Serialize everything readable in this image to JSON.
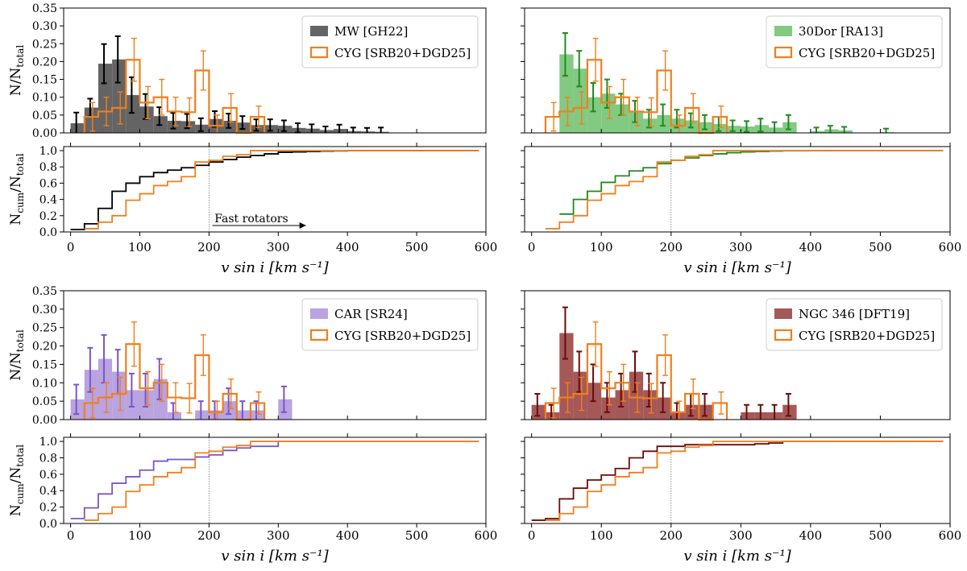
{
  "figure": {
    "hist_ylabel_main": "N/N",
    "hist_ylabel_sub": "total",
    "cum_ylabel_main1": "N",
    "cum_ylabel_sub1": "cum",
    "cum_ylabel_main2": "/N",
    "cum_ylabel_sub2": "total",
    "xlabel": "v sin i [km s⁻¹]",
    "annotation": "Fast rotators",
    "x_ticks": [
      "0",
      "100",
      "200",
      "300",
      "400",
      "500",
      "600"
    ],
    "hist_y_ticks": [
      "0.00",
      "0.05",
      "0.10",
      "0.15",
      "0.20",
      "0.25",
      "0.30",
      "0.35"
    ],
    "cum_y_ticks": [
      "0.0",
      "0.2",
      "0.4",
      "0.6",
      "0.8",
      "1.0"
    ]
  },
  "colors": {
    "cyg": "#f07f1d",
    "mw_fill": "#646464",
    "mw_err": "#000000",
    "dor_fill": "#82c982",
    "dor_err": "#1f8a1f",
    "car_fill": "#b9a3e0",
    "car_err": "#7b55c9",
    "ngc_fill": "#a55858",
    "ngc_err": "#6b0c0c"
  },
  "chart_data": [
    {
      "type": "bar",
      "panel": "MW vs CYG",
      "bin_width": 20,
      "xlim": [
        -10,
        600
      ],
      "ylim": [
        0,
        0.35
      ],
      "threshold": 200,
      "legend": {
        "reference": "MW [GH22]",
        "cyg": "CYG [SRB20+DGD25]",
        "location": "upper right"
      },
      "reference": {
        "bin_starts": [
          0,
          20,
          40,
          60,
          80,
          100,
          120,
          140,
          160,
          180,
          200,
          220,
          240,
          260,
          280,
          300,
          320,
          340,
          360,
          380,
          400,
          420,
          440
        ],
        "values": [
          0.027,
          0.071,
          0.194,
          0.206,
          0.106,
          0.074,
          0.047,
          0.034,
          0.033,
          0.023,
          0.039,
          0.034,
          0.029,
          0.022,
          0.022,
          0.02,
          0.014,
          0.012,
          0.008,
          0.011,
          0.005,
          0.004,
          0.003
        ],
        "errors": [
          0.03,
          0.025,
          0.055,
          0.065,
          0.05,
          0.035,
          0.025,
          0.022,
          0.02,
          0.018,
          0.022,
          0.02,
          0.018,
          0.016,
          0.016,
          0.015,
          0.013,
          0.012,
          0.01,
          0.012,
          0.01,
          0.01,
          0.012
        ]
      },
      "cyg": {
        "bin_starts": [
          20,
          40,
          60,
          80,
          100,
          120,
          140,
          160,
          180,
          200,
          220,
          240,
          260
        ],
        "values": [
          0.045,
          0.06,
          0.07,
          0.205,
          0.085,
          0.1,
          0.06,
          0.058,
          0.175,
          0.02,
          0.07,
          0.0,
          0.045
        ],
        "errors": [
          0.04,
          0.04,
          0.045,
          0.06,
          0.045,
          0.05,
          0.04,
          0.04,
          0.055,
          0.03,
          0.04,
          0.0,
          0.03
        ]
      },
      "cumulative": {
        "reference_values": [
          0.03,
          0.1,
          0.29,
          0.5,
          0.6,
          0.68,
          0.73,
          0.76,
          0.79,
          0.82,
          0.86,
          0.89,
          0.92,
          0.94,
          0.96,
          0.98,
          0.985,
          0.99,
          0.995,
          0.997,
          0.999,
          1.0,
          1.0
        ],
        "cyg_values": [
          0.04,
          0.12,
          0.2,
          0.39,
          0.47,
          0.57,
          0.62,
          0.68,
          0.86,
          0.88,
          0.93,
          0.95,
          1.0
        ]
      }
    },
    {
      "type": "bar",
      "panel": "30Dor vs CYG",
      "bin_width": 20,
      "xlim": [
        -10,
        600
      ],
      "ylim": [
        0,
        0.35
      ],
      "threshold": 200,
      "legend": {
        "reference": "30Dor [RA13]",
        "cyg": "CYG [SRB20+DGD25]",
        "location": "upper right"
      },
      "reference": {
        "bin_starts": [
          40,
          60,
          80,
          100,
          120,
          140,
          160,
          180,
          200,
          220,
          240,
          260,
          280,
          300,
          320,
          340,
          360,
          400,
          420,
          440,
          500
        ],
        "values": [
          0.22,
          0.18,
          0.1,
          0.11,
          0.08,
          0.06,
          0.04,
          0.05,
          0.04,
          0.035,
          0.03,
          0.025,
          0.02,
          0.018,
          0.022,
          0.015,
          0.03,
          0.005,
          0.01,
          0.007,
          0.002
        ],
        "errors": [
          0.06,
          0.05,
          0.04,
          0.04,
          0.03,
          0.03,
          0.025,
          0.03,
          0.025,
          0.02,
          0.02,
          0.02,
          0.015,
          0.015,
          0.018,
          0.015,
          0.02,
          0.01,
          0.01,
          0.01,
          0.01
        ]
      },
      "cyg": {
        "bin_starts": [
          20,
          40,
          60,
          80,
          100,
          120,
          140,
          160,
          180,
          200,
          220,
          240,
          260
        ],
        "values": [
          0.045,
          0.06,
          0.07,
          0.205,
          0.085,
          0.1,
          0.06,
          0.058,
          0.175,
          0.02,
          0.07,
          0.0,
          0.045
        ],
        "errors": [
          0.04,
          0.04,
          0.045,
          0.06,
          0.045,
          0.05,
          0.04,
          0.04,
          0.055,
          0.03,
          0.04,
          0.0,
          0.03
        ]
      },
      "cumulative": {
        "reference_values": [
          0.22,
          0.4,
          0.5,
          0.61,
          0.69,
          0.75,
          0.79,
          0.84,
          0.88,
          0.91,
          0.94,
          0.96,
          0.975,
          0.985,
          0.99,
          0.995,
          0.998,
          0.999,
          1.0,
          1.0,
          1.0
        ],
        "cyg_values": [
          0.04,
          0.12,
          0.2,
          0.39,
          0.47,
          0.57,
          0.62,
          0.68,
          0.86,
          0.88,
          0.93,
          0.95,
          1.0
        ]
      }
    },
    {
      "type": "bar",
      "panel": "CAR vs CYG",
      "bin_width": 20,
      "xlim": [
        -10,
        600
      ],
      "ylim": [
        0,
        0.35
      ],
      "threshold": 200,
      "legend": {
        "reference": "CAR [SR24]",
        "cyg": "CYG [SRB20+DGD25]",
        "location": "upper right"
      },
      "reference": {
        "bin_starts": [
          0,
          20,
          40,
          60,
          80,
          100,
          120,
          140,
          160,
          180,
          200,
          220,
          240,
          260,
          300
        ],
        "values": [
          0.055,
          0.135,
          0.165,
          0.13,
          0.08,
          0.08,
          0.11,
          0.02,
          0.0,
          0.025,
          0.025,
          0.05,
          0.025,
          0.025,
          0.055
        ],
        "errors": [
          0.04,
          0.06,
          0.065,
          0.06,
          0.045,
          0.045,
          0.055,
          0.025,
          0.0,
          0.025,
          0.025,
          0.035,
          0.025,
          0.025,
          0.035
        ]
      },
      "cyg": {
        "bin_starts": [
          20,
          40,
          60,
          80,
          100,
          120,
          140,
          160,
          180,
          200,
          220,
          240,
          260
        ],
        "values": [
          0.045,
          0.06,
          0.07,
          0.205,
          0.085,
          0.1,
          0.06,
          0.058,
          0.175,
          0.02,
          0.07,
          0.0,
          0.045
        ],
        "errors": [
          0.04,
          0.04,
          0.045,
          0.06,
          0.045,
          0.05,
          0.04,
          0.04,
          0.055,
          0.03,
          0.04,
          0.0,
          0.03
        ]
      },
      "cumulative": {
        "reference_values": [
          0.06,
          0.19,
          0.36,
          0.49,
          0.57,
          0.65,
          0.76,
          0.78,
          0.78,
          0.81,
          0.835,
          0.89,
          0.92,
          0.94,
          1.0
        ],
        "cyg_values": [
          0.04,
          0.12,
          0.2,
          0.39,
          0.47,
          0.57,
          0.62,
          0.68,
          0.86,
          0.88,
          0.93,
          0.95,
          1.0
        ]
      }
    },
    {
      "type": "bar",
      "panel": "NGC 346 vs CYG",
      "bin_width": 20,
      "xlim": [
        -10,
        600
      ],
      "ylim": [
        0,
        0.35
      ],
      "threshold": 200,
      "legend": {
        "reference": "NGC 346 [DFT19]",
        "cyg": "CYG [SRB20+DGD25]",
        "location": "upper right"
      },
      "reference": {
        "bin_starts": [
          0,
          20,
          40,
          60,
          80,
          100,
          120,
          140,
          160,
          180,
          200,
          220,
          240,
          260,
          300,
          320,
          340,
          360
        ],
        "values": [
          0.04,
          0.02,
          0.235,
          0.13,
          0.1,
          0.06,
          0.08,
          0.13,
          0.08,
          0.06,
          0.02,
          0.04,
          0.04,
          0.0,
          0.02,
          0.02,
          0.02,
          0.04
        ],
        "errors": [
          0.03,
          0.02,
          0.07,
          0.055,
          0.05,
          0.04,
          0.045,
          0.055,
          0.045,
          0.04,
          0.025,
          0.03,
          0.03,
          0.0,
          0.02,
          0.02,
          0.02,
          0.03
        ]
      },
      "cyg": {
        "bin_starts": [
          20,
          40,
          60,
          80,
          100,
          120,
          140,
          160,
          180,
          200,
          220,
          240,
          260
        ],
        "values": [
          0.045,
          0.06,
          0.07,
          0.205,
          0.085,
          0.1,
          0.06,
          0.058,
          0.175,
          0.02,
          0.07,
          0.0,
          0.045
        ],
        "errors": [
          0.04,
          0.04,
          0.045,
          0.06,
          0.045,
          0.05,
          0.04,
          0.04,
          0.055,
          0.03,
          0.04,
          0.0,
          0.03
        ]
      },
      "cumulative": {
        "reference_values": [
          0.04,
          0.06,
          0.3,
          0.43,
          0.53,
          0.59,
          0.67,
          0.8,
          0.88,
          0.94,
          0.94,
          0.96,
          0.96,
          0.96,
          0.96,
          0.97,
          0.98,
          1.0
        ],
        "cyg_values": [
          0.04,
          0.12,
          0.2,
          0.39,
          0.47,
          0.57,
          0.62,
          0.68,
          0.86,
          0.88,
          0.93,
          0.95,
          1.0
        ]
      }
    }
  ]
}
